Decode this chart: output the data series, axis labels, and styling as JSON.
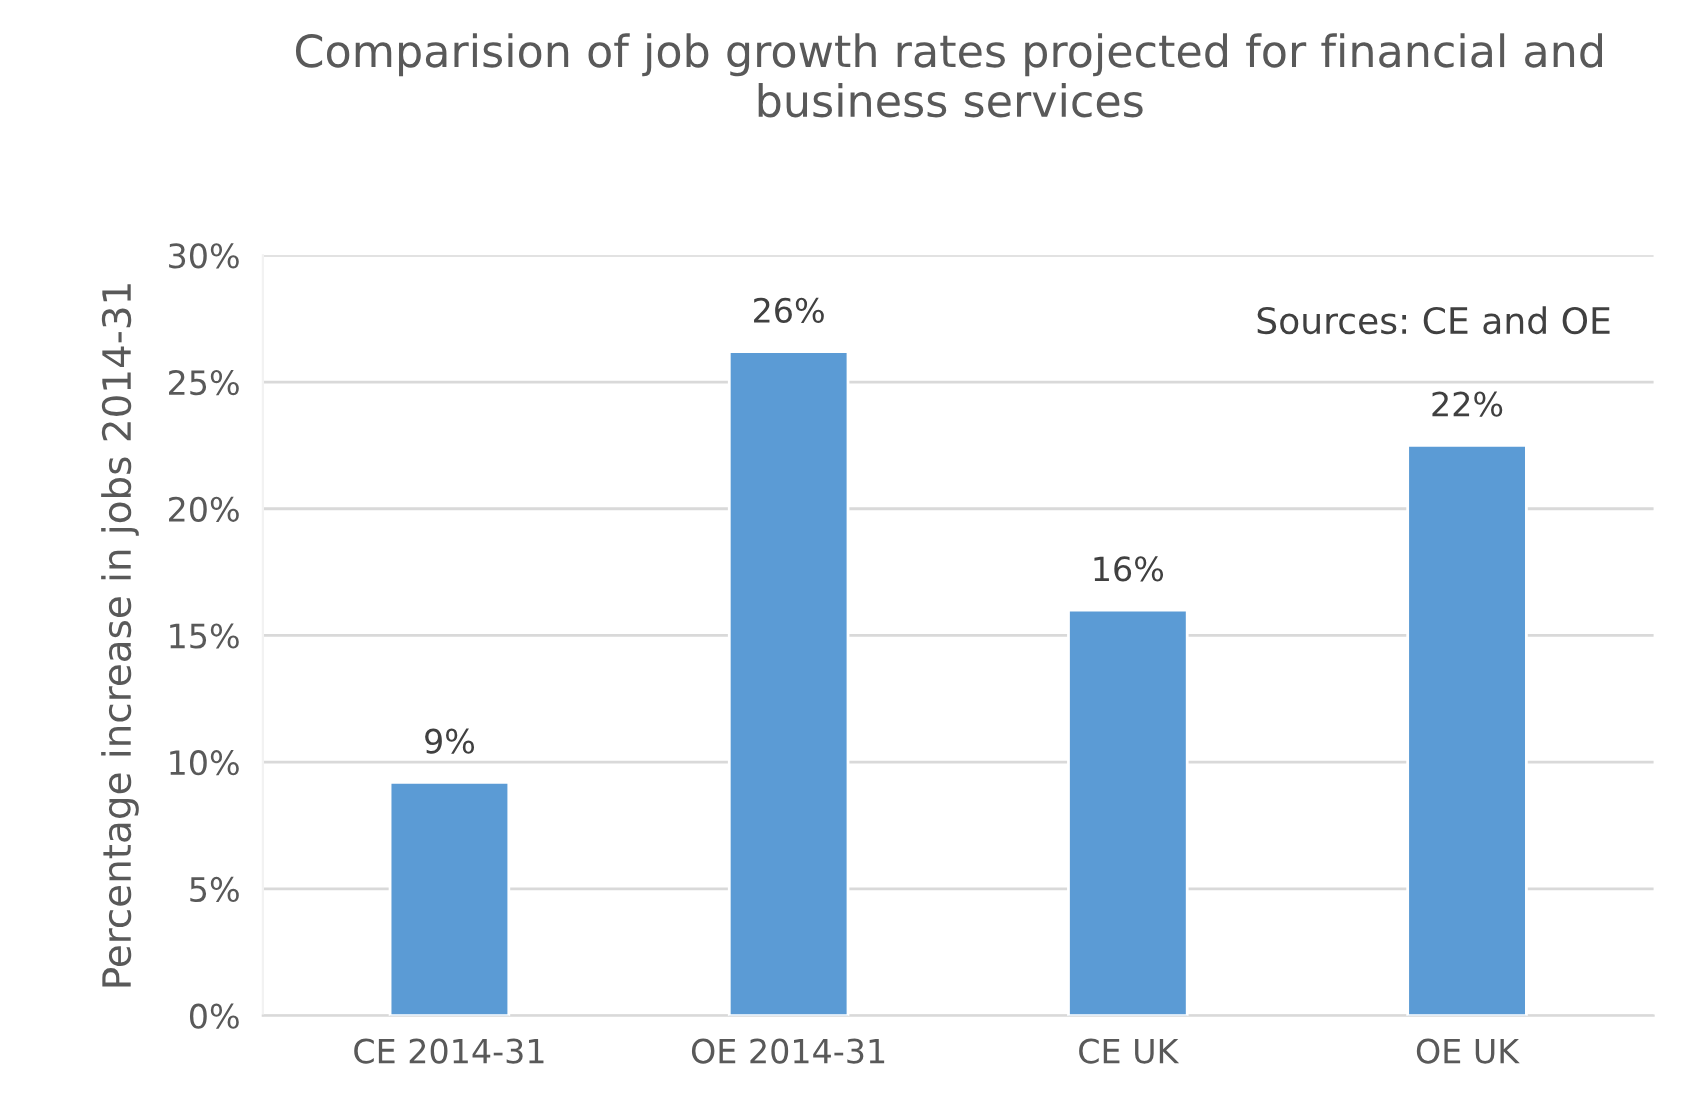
{
  "chart_data": {
    "type": "bar",
    "title": "Comparision of job growth rates projected for financial and business services",
    "ylabel": "Percentage increase in jobs 2014-31",
    "categories": [
      "CE 2014-31",
      "OE 2014-31",
      "CE UK",
      "OE UK"
    ],
    "values": [
      9.2,
      26.2,
      16.0,
      22.5
    ],
    "value_labels": [
      "9%",
      "26%",
      "16%",
      "22%"
    ],
    "color": "#5b9bd5",
    "ylim": [
      0,
      30
    ],
    "yticks": [
      {
        "value": 0,
        "label": "0%"
      },
      {
        "value": 5,
        "label": "5%"
      },
      {
        "value": 10,
        "label": "10%"
      },
      {
        "value": 15,
        "label": "15%"
      },
      {
        "value": 20,
        "label": "20%"
      },
      {
        "value": 25,
        "label": "25%"
      },
      {
        "value": 30,
        "label": "30%"
      }
    ],
    "grid": "y",
    "annotations": [
      "Sources: CE and OE"
    ]
  }
}
